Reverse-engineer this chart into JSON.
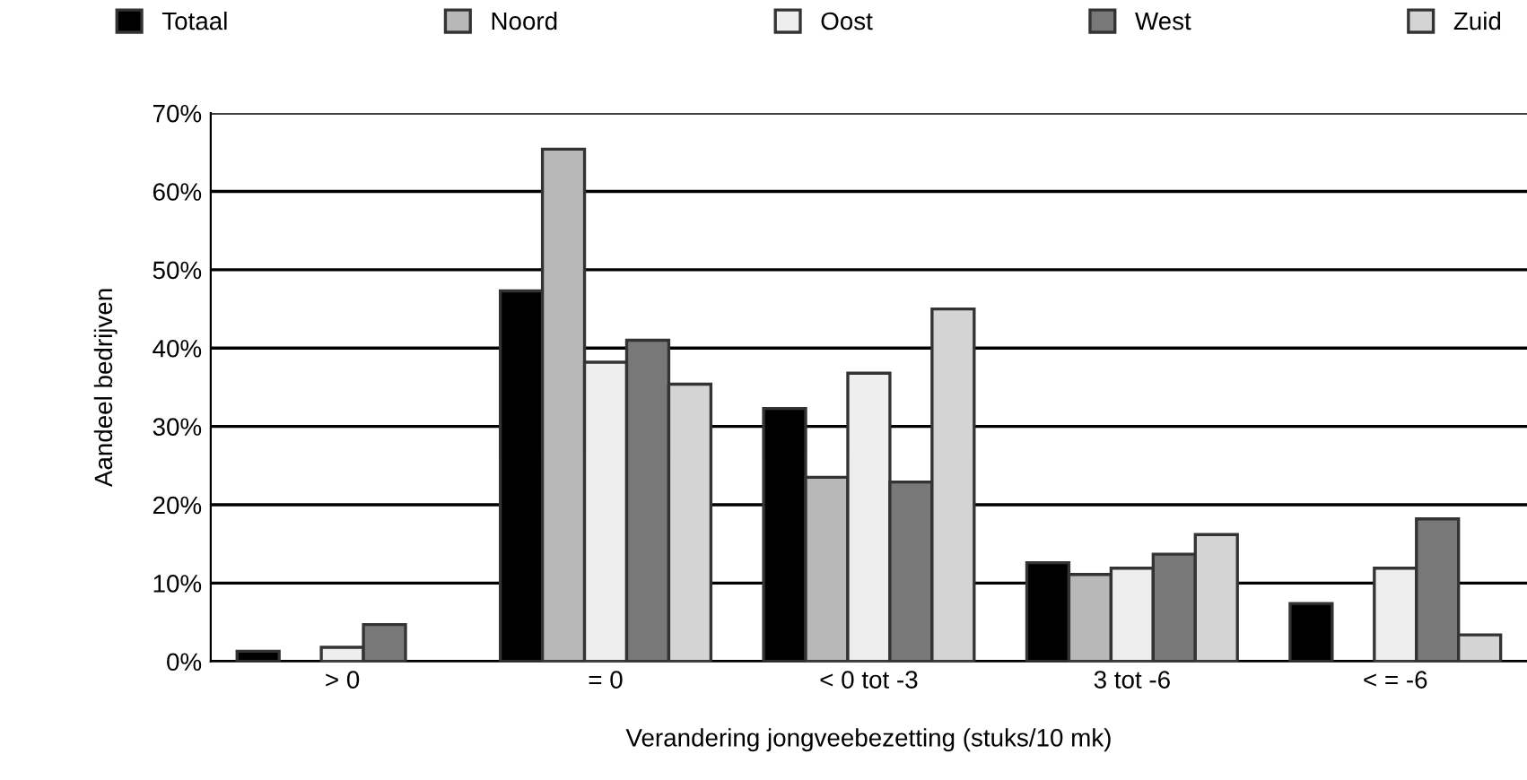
{
  "chart_data": {
    "type": "bar",
    "xlabel": "Verandering jongveebezetting (stuks/10 mk)",
    "ylabel": "Aandeel bedrijven",
    "categories": [
      "> 0",
      "= 0",
      "< 0 tot -3",
      "3 tot -6",
      "< = -6"
    ],
    "series": [
      {
        "name": "Totaal",
        "color": "#000000",
        "values": [
          1.3,
          47.3,
          32.3,
          12.6,
          7.4
        ]
      },
      {
        "name": "Noord",
        "color": "#b8b8b8",
        "values": [
          null,
          65.4,
          23.5,
          11.1,
          null
        ]
      },
      {
        "name": "Oost",
        "color": "#eeeeee",
        "values": [
          1.8,
          38.2,
          36.8,
          11.9,
          11.9
        ]
      },
      {
        "name": "West",
        "color": "#787878",
        "values": [
          4.7,
          41.0,
          22.9,
          13.7,
          18.2
        ]
      },
      {
        "name": "Zuid",
        "color": "#d4d4d4",
        "values": [
          null,
          35.4,
          45.0,
          16.2,
          3.4
        ]
      }
    ],
    "ylim": [
      0,
      70
    ],
    "yticks": [
      {
        "value": 0,
        "label": "0%"
      },
      {
        "value": 10,
        "label": "10%"
      },
      {
        "value": 20,
        "label": "20%"
      },
      {
        "value": 30,
        "label": "30%"
      },
      {
        "value": 40,
        "label": "40%"
      },
      {
        "value": 50,
        "label": "50%"
      },
      {
        "value": 60,
        "label": "60%"
      },
      {
        "value": 70,
        "label": "70%"
      }
    ],
    "grid": "y",
    "legend": "top"
  }
}
